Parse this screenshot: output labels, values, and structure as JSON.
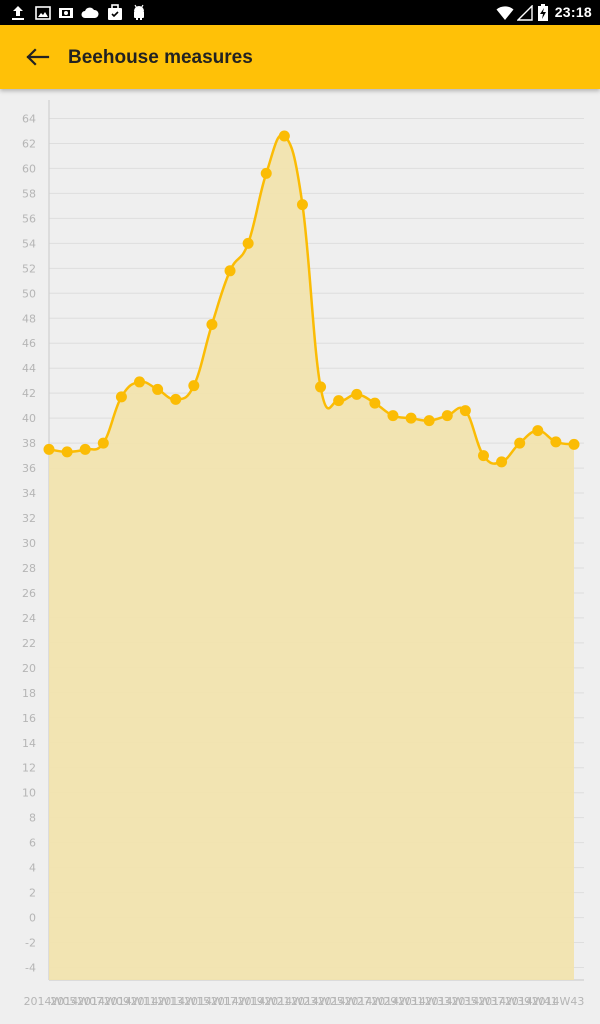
{
  "status_bar": {
    "time": "23:18",
    "icons": [
      "upload-icon",
      "gallery-icon",
      "photo-icon",
      "cloud-icon",
      "briefcase-icon",
      "android-icon",
      "wifi-icon",
      "signal-icon",
      "battery-charging-icon"
    ]
  },
  "app_bar": {
    "title": "Beehouse measures",
    "back_icon": "arrow-back-icon"
  },
  "colors": {
    "accent": "#ffc107",
    "line": "#fbbc05",
    "fill": "#f1e3ae",
    "grid": "#dedede",
    "label": "#b5b5b5"
  },
  "chart_data": {
    "type": "area",
    "title": "",
    "xlabel": "",
    "ylabel": "",
    "ylim": [
      -5,
      65
    ],
    "y_ticks": [
      -4,
      -2,
      0,
      2,
      4,
      6,
      8,
      10,
      12,
      14,
      16,
      18,
      20,
      22,
      24,
      26,
      28,
      30,
      32,
      34,
      36,
      38,
      40,
      42,
      44,
      46,
      48,
      50,
      52,
      54,
      56,
      58,
      60,
      62,
      64
    ],
    "x_tick_labels": [
      "2014W05",
      "2014W07",
      "2014W09",
      "2014W11",
      "2014W13",
      "2014W15",
      "2014W17",
      "2014W19",
      "2014W21",
      "2014W23",
      "2014W25",
      "2014W27",
      "2014W29",
      "2014W31",
      "2014W33",
      "2014W35",
      "2014W37",
      "2014W39",
      "2014W41",
      "2014W43"
    ],
    "grid": true,
    "legend": "none",
    "series": [
      {
        "values": [
          37.5,
          37.3,
          37.5,
          38.0,
          41.7,
          42.9,
          42.3,
          41.5,
          42.6,
          47.5,
          51.8,
          54.0,
          59.6,
          62.6,
          57.1,
          42.5,
          41.4,
          41.9,
          41.2,
          40.2,
          40.0,
          39.8,
          40.2,
          40.6,
          37.0,
          36.5,
          38.0,
          39.0,
          38.1,
          37.9
        ]
      }
    ]
  }
}
